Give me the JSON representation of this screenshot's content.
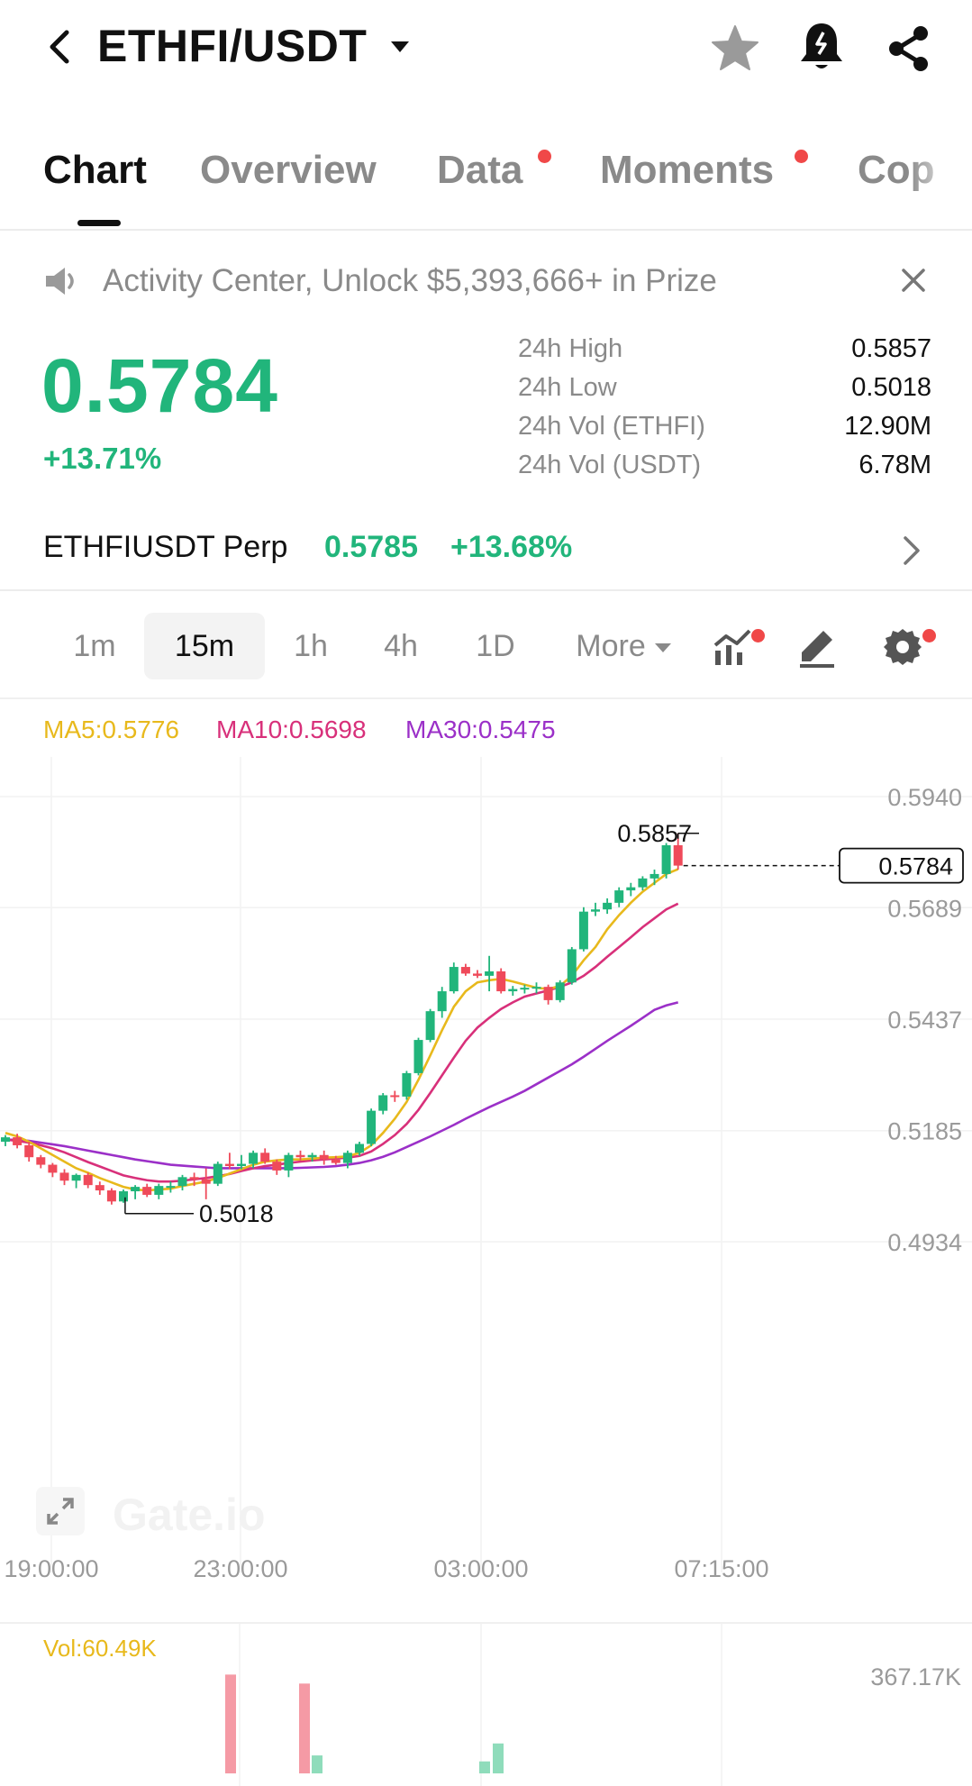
{
  "header": {
    "pair": "ETHFI/USDT",
    "icons": [
      "back-icon",
      "caret-down-icon",
      "star-icon",
      "bell-icon",
      "share-icon"
    ]
  },
  "tabs": [
    {
      "label": "Chart",
      "active": true,
      "dot": false
    },
    {
      "label": "Overview",
      "active": false,
      "dot": false
    },
    {
      "label": "Data",
      "active": false,
      "dot": true
    },
    {
      "label": "Moments",
      "active": false,
      "dot": true
    },
    {
      "label": "Cop",
      "active": false,
      "dot": false
    }
  ],
  "announcement": {
    "text": "Activity Center, Unlock $5,393,666+ in Prize"
  },
  "ticker": {
    "price": "0.5784",
    "change": "+13.71%",
    "stats": [
      {
        "label": "24h High",
        "value": "0.5857"
      },
      {
        "label": "24h Low",
        "value": "0.5018"
      },
      {
        "label": "24h Vol (ETHFI)",
        "value": "12.90M"
      },
      {
        "label": "24h Vol (USDT)",
        "value": "6.78M"
      }
    ]
  },
  "perp": {
    "name": "ETHFIUSDT Perp",
    "price": "0.5785",
    "change": "+13.68%"
  },
  "timeframes": {
    "items": [
      {
        "label": "1m",
        "active": false
      },
      {
        "label": "15m",
        "active": true
      },
      {
        "label": "1h",
        "active": false
      },
      {
        "label": "4h",
        "active": false
      },
      {
        "label": "1D",
        "active": false
      }
    ],
    "more_label": "More"
  },
  "ma_legend": {
    "ma5": "MA5:0.5776",
    "ma10": "MA10:0.5698",
    "ma30": "MA30:0.5475"
  },
  "colors": {
    "up": "#21b57b",
    "down": "#ef4a5a",
    "ma5": "#e8b91c",
    "ma10": "#d8307a",
    "ma30": "#9b30c8",
    "accent_dot": "#f04848"
  },
  "chart": {
    "y_ticks": [
      "0.5940",
      "0.5689",
      "0.5437",
      "0.5185",
      "0.4934"
    ],
    "x_ticks": [
      "19:00:00",
      "23:00:00",
      "03:00:00",
      "07:15:00"
    ],
    "high_label": "0.5857",
    "low_label": "0.5018",
    "last_price_label": "0.5784",
    "watermark": "Gate.io"
  },
  "chart_data": {
    "type": "candlestick",
    "interval": "15m",
    "ylim": [
      0.4934,
      0.594
    ],
    "x_ticks": [
      "19:00:00",
      "23:00:00",
      "03:00:00",
      "07:15:00"
    ],
    "high": 0.5857,
    "low": 0.5018,
    "last": 0.5784,
    "candles": [
      [
        0.516,
        0.5175,
        0.515,
        0.517
      ],
      [
        0.517,
        0.5178,
        0.5145,
        0.5152
      ],
      [
        0.5152,
        0.516,
        0.5115,
        0.5125
      ],
      [
        0.5125,
        0.513,
        0.51,
        0.5108
      ],
      [
        0.5108,
        0.5112,
        0.508,
        0.509
      ],
      [
        0.509,
        0.5098,
        0.5062,
        0.5072
      ],
      [
        0.5072,
        0.5088,
        0.5055,
        0.5085
      ],
      [
        0.5085,
        0.509,
        0.5055,
        0.5062
      ],
      [
        0.5062,
        0.507,
        0.504,
        0.505
      ],
      [
        0.505,
        0.5055,
        0.5018,
        0.5025
      ],
      [
        0.5025,
        0.5052,
        0.5022,
        0.5048
      ],
      [
        0.5048,
        0.5062,
        0.503,
        0.5058
      ],
      [
        0.5058,
        0.5065,
        0.5035,
        0.504
      ],
      [
        0.504,
        0.5065,
        0.503,
        0.506
      ],
      [
        0.506,
        0.507,
        0.5045,
        0.506
      ],
      [
        0.506,
        0.5085,
        0.505,
        0.508
      ],
      [
        0.508,
        0.509,
        0.506,
        0.5075
      ],
      [
        0.5075,
        0.51,
        0.503,
        0.5065
      ],
      [
        0.5065,
        0.5115,
        0.506,
        0.511
      ],
      [
        0.511,
        0.5135,
        0.5098,
        0.5105
      ],
      [
        0.5105,
        0.513,
        0.5098,
        0.511
      ],
      [
        0.511,
        0.514,
        0.51,
        0.5135
      ],
      [
        0.5135,
        0.5145,
        0.511,
        0.5115
      ],
      [
        0.5115,
        0.512,
        0.5085,
        0.5095
      ],
      [
        0.5095,
        0.5135,
        0.508,
        0.513
      ],
      [
        0.513,
        0.514,
        0.5118,
        0.5125
      ],
      [
        0.5125,
        0.5135,
        0.5115,
        0.513
      ],
      [
        0.513,
        0.514,
        0.5108,
        0.512
      ],
      [
        0.512,
        0.5128,
        0.5108,
        0.5112
      ],
      [
        0.5112,
        0.514,
        0.51,
        0.5135
      ],
      [
        0.5135,
        0.516,
        0.5128,
        0.5155
      ],
      [
        0.5155,
        0.5235,
        0.515,
        0.523
      ],
      [
        0.523,
        0.527,
        0.5222,
        0.5265
      ],
      [
        0.5265,
        0.5275,
        0.525,
        0.5262
      ],
      [
        0.5262,
        0.532,
        0.5255,
        0.5315
      ],
      [
        0.5315,
        0.5395,
        0.531,
        0.539
      ],
      [
        0.539,
        0.546,
        0.5385,
        0.5455
      ],
      [
        0.5455,
        0.551,
        0.544,
        0.55
      ],
      [
        0.55,
        0.5565,
        0.5495,
        0.5555
      ],
      [
        0.5555,
        0.5562,
        0.5535,
        0.554
      ],
      [
        0.554,
        0.5548,
        0.553,
        0.5535
      ],
      [
        0.5535,
        0.558,
        0.55,
        0.5545
      ],
      [
        0.5545,
        0.5552,
        0.5495,
        0.55
      ],
      [
        0.55,
        0.5512,
        0.549,
        0.5505
      ],
      [
        0.5505,
        0.5515,
        0.5495,
        0.5508
      ],
      [
        0.5508,
        0.552,
        0.5495,
        0.551
      ],
      [
        0.551,
        0.5515,
        0.547,
        0.548
      ],
      [
        0.548,
        0.5525,
        0.5475,
        0.552
      ],
      [
        0.552,
        0.56,
        0.5515,
        0.5595
      ],
      [
        0.5595,
        0.569,
        0.559,
        0.568
      ],
      [
        0.568,
        0.57,
        0.567,
        0.5685
      ],
      [
        0.5685,
        0.571,
        0.5675,
        0.57
      ],
      [
        0.57,
        0.5735,
        0.569,
        0.5728
      ],
      [
        0.5728,
        0.5745,
        0.5715,
        0.5735
      ],
      [
        0.5735,
        0.576,
        0.5728,
        0.5755
      ],
      [
        0.5755,
        0.5775,
        0.574,
        0.5765
      ],
      [
        0.5765,
        0.5835,
        0.5755,
        0.583
      ],
      [
        0.583,
        0.5857,
        0.5775,
        0.5784
      ]
    ],
    "ma5": [
      0.518,
      0.5172,
      0.516,
      0.5145,
      0.513,
      0.5115,
      0.51,
      0.509,
      0.5078,
      0.5068,
      0.5058,
      0.5052,
      0.505,
      0.5052,
      0.5054,
      0.506,
      0.5065,
      0.507,
      0.5078,
      0.5088,
      0.5098,
      0.5108,
      0.5115,
      0.5118,
      0.512,
      0.512,
      0.5122,
      0.5124,
      0.5125,
      0.5127,
      0.5135,
      0.5152,
      0.518,
      0.5212,
      0.525,
      0.53,
      0.5355,
      0.5412,
      0.5465,
      0.55,
      0.552,
      0.5525,
      0.5528,
      0.5522,
      0.5515,
      0.5508,
      0.5505,
      0.5512,
      0.5535,
      0.557,
      0.56,
      0.564,
      0.5672,
      0.57,
      0.5725,
      0.5745,
      0.5765,
      0.5776
    ],
    "ma10": [
      0.5165,
      0.5162,
      0.5158,
      0.5152,
      0.5145,
      0.5136,
      0.5125,
      0.5114,
      0.5104,
      0.5094,
      0.5084,
      0.5078,
      0.5073,
      0.507,
      0.507,
      0.5072,
      0.5075,
      0.5078,
      0.5082,
      0.5087,
      0.5094,
      0.51,
      0.5105,
      0.5108,
      0.5112,
      0.5115,
      0.5118,
      0.512,
      0.5122,
      0.5124,
      0.5128,
      0.5138,
      0.5155,
      0.5175,
      0.52,
      0.5232,
      0.527,
      0.531,
      0.535,
      0.5388,
      0.5418,
      0.544,
      0.546,
      0.5475,
      0.5488,
      0.5495,
      0.5502,
      0.551,
      0.552,
      0.5535,
      0.5555,
      0.5578,
      0.56,
      0.5622,
      0.5645,
      0.5665,
      0.5685,
      0.5698
    ],
    "ma30": [
      0.5165,
      0.5164,
      0.5162,
      0.5158,
      0.5154,
      0.515,
      0.5145,
      0.514,
      0.5135,
      0.513,
      0.5125,
      0.512,
      0.5116,
      0.5112,
      0.5108,
      0.5106,
      0.5104,
      0.5102,
      0.51,
      0.51,
      0.51,
      0.51,
      0.51,
      0.51,
      0.51,
      0.5101,
      0.5102,
      0.5103,
      0.5105,
      0.5108,
      0.5112,
      0.5118,
      0.5126,
      0.5136,
      0.5148,
      0.516,
      0.5172,
      0.5185,
      0.5198,
      0.5212,
      0.5225,
      0.5238,
      0.525,
      0.5262,
      0.5275,
      0.529,
      0.5305,
      0.532,
      0.5335,
      0.5352,
      0.537,
      0.5388,
      0.5405,
      0.5422,
      0.544,
      0.5458,
      0.5468,
      0.5475
    ]
  },
  "volume": {
    "label": "Vol:60.49K",
    "max_label": "367.17K",
    "bars": [
      {
        "i": 16,
        "value": 330000,
        "up": false
      },
      {
        "i": 21,
        "value": 300000,
        "up": false
      },
      {
        "i": 22,
        "value": 60000,
        "up": true
      },
      {
        "i": 33,
        "value": 40000,
        "up": true
      },
      {
        "i": 34,
        "value": 100000,
        "up": true
      }
    ],
    "max": 367170
  }
}
